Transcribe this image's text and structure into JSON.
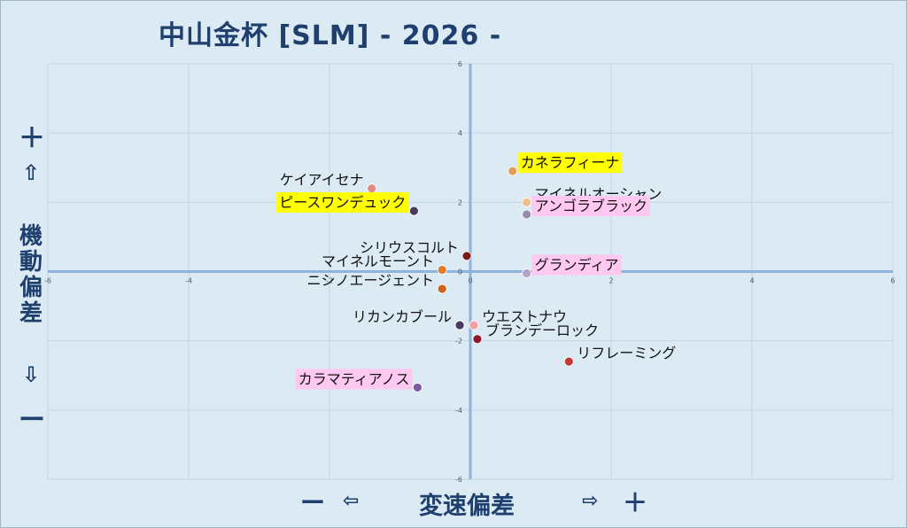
{
  "title": "中山金杯 [SLM]  - 2026 -",
  "y_axis": {
    "plus": "＋",
    "up": "⇧",
    "label": "機動偏差",
    "down": "⇩",
    "minus": "ー"
  },
  "x_axis": {
    "minus": "ー",
    "left": "⇦",
    "label": "変速偏差",
    "right": "⇨",
    "plus": "＋"
  },
  "chart_data": {
    "type": "scatter",
    "xlim": [
      -6,
      6
    ],
    "ylim": [
      -6,
      6
    ],
    "xticks": [
      -6,
      -4,
      -2,
      0,
      2,
      4,
      6
    ],
    "yticks": [
      -6,
      -4,
      -2,
      0,
      2,
      4,
      6
    ],
    "grid": true,
    "points": [
      {
        "name": "カネラフィーナ",
        "x": 0.6,
        "y": 2.9,
        "color": "#e59b5a",
        "highlight": "#ffff00"
      },
      {
        "name": "マイネルオーシャン",
        "x": 0.8,
        "y": 2.0,
        "color": "#f0c08a",
        "highlight": ""
      },
      {
        "name": "アンゴラブラック",
        "x": 0.8,
        "y": 1.65,
        "color": "#9a8ab0",
        "highlight": "#ffc8f0"
      },
      {
        "name": "ケイアイセナ",
        "x": -1.4,
        "y": 2.4,
        "color": "#e58a80",
        "highlight": ""
      },
      {
        "name": "ピースワンデュック",
        "x": -0.8,
        "y": 1.75,
        "color": "#4a3a60",
        "highlight": "#ffff00"
      },
      {
        "name": "シリウスコルト",
        "x": -0.05,
        "y": 0.45,
        "color": "#7a1a1a",
        "highlight": ""
      },
      {
        "name": "マイネルモーント",
        "x": -0.4,
        "y": 0.05,
        "color": "#e07a2a",
        "highlight": ""
      },
      {
        "name": "グランディア",
        "x": 0.8,
        "y": -0.05,
        "color": "#b8a0c8",
        "highlight": "#ffc8f0"
      },
      {
        "name": "ニシノエージェント",
        "x": -0.4,
        "y": -0.5,
        "color": "#d0601a",
        "highlight": ""
      },
      {
        "name": "ウエストナウ",
        "x": 0.05,
        "y": -1.55,
        "color": "#f0a0a0",
        "highlight": ""
      },
      {
        "name": "リカンカブール",
        "x": -0.15,
        "y": -1.55,
        "color": "#4a3a60",
        "highlight": ""
      },
      {
        "name": "ブランデーロック",
        "x": 0.1,
        "y": -1.95,
        "color": "#8a1a2a",
        "highlight": ""
      },
      {
        "name": "リフレーミング",
        "x": 1.4,
        "y": -2.6,
        "color": "#c03a3a",
        "highlight": ""
      },
      {
        "name": "カラマティアノス",
        "x": -0.75,
        "y": -3.35,
        "color": "#7a5aa0",
        "highlight": "#ffc8f0"
      }
    ]
  }
}
